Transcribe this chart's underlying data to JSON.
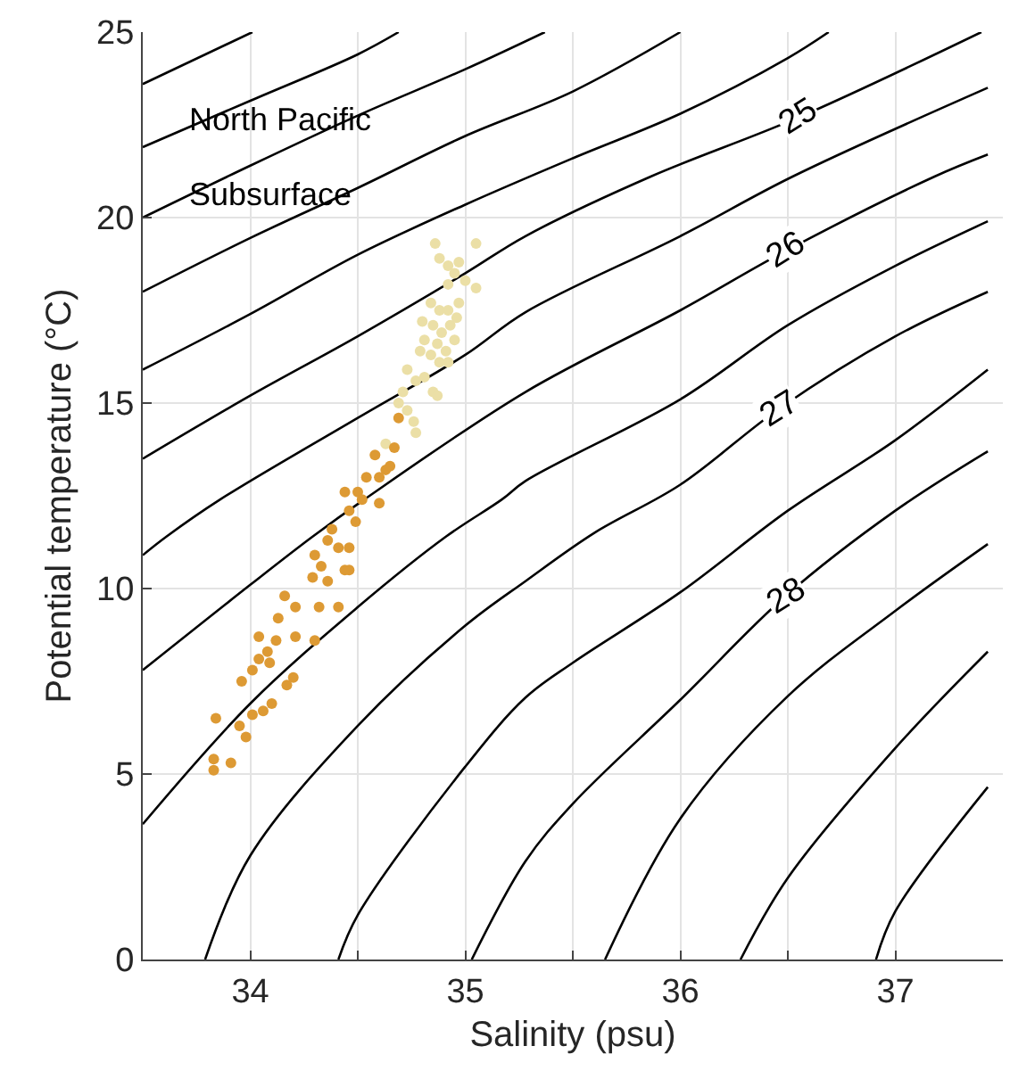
{
  "chart_data": {
    "type": "scatter",
    "xlabel": "Salinity (psu)",
    "ylabel": "Potential temperature (°C)",
    "xlim": [
      33.5,
      37.5
    ],
    "ylim": [
      0,
      25
    ],
    "xticks": [
      34,
      {
        "value": 34.5,
        "label": null
      },
      35,
      {
        "value": 35.5,
        "label": null
      },
      36,
      {
        "value": 36.5,
        "label": null
      },
      37
    ],
    "yticks": [
      0,
      5,
      10,
      15,
      20,
      25
    ],
    "grid": true,
    "marker": "circle",
    "annotations": [
      "North Pacific",
      "Subsurface",
      {
        "text": "25",
        "x": 36.55,
        "y": 22.7
      },
      {
        "text": "26",
        "x": 36.49,
        "y": 19.1
      },
      {
        "text": "27",
        "x": 36.46,
        "y": 14.85
      },
      {
        "text": "28",
        "x": 36.49,
        "y": 9.8
      }
    ],
    "series": [
      {
        "type": "line",
        "marker": "none",
        "color": "#000000",
        "x": [
          33.5,
          34.01
        ],
        "values": [
          23.6,
          25
        ]
      },
      {
        "type": "line",
        "marker": "none",
        "color": "#000000",
        "x": [
          33.5,
          34.0,
          34.5,
          34.69
        ],
        "values": [
          21.9,
          23.15,
          24.4,
          25
        ]
      },
      {
        "type": "line",
        "marker": "none",
        "color": "#000000",
        "x": [
          33.5,
          34.0,
          34.5,
          35.0,
          35.37
        ],
        "values": [
          20.0,
          21.4,
          22.75,
          24.0,
          25
        ]
      },
      {
        "type": "line",
        "marker": "none",
        "color": "#000000",
        "x": [
          33.5,
          34.0,
          34.5,
          35.0,
          35.5,
          36.0
        ],
        "values": [
          18.0,
          19.45,
          20.8,
          22.2,
          23.4,
          25
        ]
      },
      {
        "type": "line",
        "marker": "none",
        "color": "#000000",
        "x": [
          33.5,
          34.0,
          34.5,
          35.0,
          35.5,
          36.0,
          36.5,
          36.69
        ],
        "values": [
          15.9,
          17.4,
          19.0,
          20.35,
          21.6,
          22.8,
          24.3,
          25
        ]
      },
      {
        "type": "line",
        "marker": "none",
        "color": "#000000",
        "x": [
          33.5,
          34.0,
          34.5,
          35.0,
          35.28,
          35.86,
          36.55,
          37.4
        ],
        "values": [
          13.5,
          15.2,
          16.8,
          18.5,
          19.5,
          21.1,
          22.7,
          25
        ]
      },
      {
        "type": "line",
        "marker": "none",
        "color": "#000000",
        "x": [
          33.5,
          33.61,
          33.86,
          34.5,
          35.0,
          35.28,
          36.0,
          36.52,
          37.43
        ],
        "values": [
          10.9,
          11.4,
          12.4,
          14.6,
          16.3,
          17.45,
          19.5,
          21.1,
          23.5
        ]
      },
      {
        "type": "line",
        "marker": "none",
        "color": "#000000",
        "x": [
          33.5,
          34.0,
          34.29,
          34.53,
          35.28,
          36.0,
          36.49,
          37.18,
          37.43
        ],
        "values": [
          7.8,
          10.1,
          11.4,
          12.4,
          15.3,
          17.5,
          19.1,
          21.1,
          21.7
        ]
      },
      {
        "type": "line",
        "marker": "none",
        "color": "#000000",
        "x": [
          33.5,
          34.0,
          34.5,
          34.91,
          35.17,
          35.28,
          36.0,
          36.5,
          37.0,
          37.43
        ],
        "values": [
          3.65,
          6.9,
          9.5,
          11.4,
          12.4,
          12.9,
          15.1,
          17.1,
          18.7,
          19.9
        ]
      },
      {
        "type": "line",
        "marker": "none",
        "color": "#000000",
        "x": [
          33.79,
          34.0,
          34.5,
          35.0,
          35.28,
          35.6,
          36.0,
          36.46,
          37.0,
          37.43
        ],
        "values": [
          0,
          2.8,
          6.3,
          9.0,
          10.2,
          11.5,
          12.8,
          14.85,
          16.8,
          18.0
        ]
      },
      {
        "type": "line",
        "marker": "none",
        "color": "#000000",
        "x": [
          34.41,
          34.5,
          35.0,
          35.28,
          35.5,
          36.0,
          36.5,
          37.0,
          37.43
        ],
        "values": [
          0,
          1.2,
          5.2,
          7.06,
          8.0,
          9.9,
          12.1,
          14.0,
          15.9
        ]
      },
      {
        "type": "line",
        "marker": "none",
        "color": "#000000",
        "x": [
          35.03,
          35.28,
          35.5,
          36.0,
          36.49,
          37.0,
          37.43
        ],
        "values": [
          0,
          2.65,
          4.2,
          7.0,
          9.8,
          12.1,
          13.7
        ]
      },
      {
        "type": "line",
        "marker": "none",
        "color": "#000000",
        "x": [
          35.65,
          36.0,
          36.5,
          37.0,
          37.43
        ],
        "values": [
          0,
          3.8,
          7.1,
          9.4,
          11.2
        ]
      },
      {
        "type": "line",
        "marker": "none",
        "color": "#000000",
        "x": [
          36.28,
          36.5,
          37.0,
          37.43
        ],
        "values": [
          0,
          2.2,
          5.7,
          8.3
        ]
      },
      {
        "type": "line",
        "marker": "none",
        "color": "#000000",
        "x": [
          36.91,
          37.0,
          37.43
        ],
        "values": [
          0,
          1.3,
          4.65
        ]
      },
      {
        "color": "#ebdfa6",
        "x": [
          34.86,
          35.05,
          34.88,
          34.92,
          34.97,
          34.95,
          35.0,
          34.92,
          35.05,
          34.84,
          34.88,
          34.92,
          34.97,
          34.8,
          34.85,
          34.89,
          34.93,
          34.96,
          34.81,
          34.87,
          34.91,
          34.95,
          34.84,
          34.88,
          34.79,
          34.92,
          34.73,
          34.77,
          34.81,
          34.71,
          34.85,
          34.87,
          34.69,
          34.73,
          34.76,
          34.77,
          34.63
        ],
        "values": [
          19.3,
          19.3,
          18.9,
          18.7,
          18.8,
          18.5,
          18.3,
          18.2,
          18.1,
          17.7,
          17.5,
          17.5,
          17.7,
          17.2,
          17.1,
          16.9,
          17.1,
          17.3,
          16.7,
          16.6,
          16.4,
          16.7,
          16.3,
          16.1,
          16.4,
          16.1,
          15.9,
          15.6,
          15.7,
          15.3,
          15.3,
          15.2,
          15.0,
          14.8,
          14.5,
          14.2,
          13.9
        ]
      },
      {
        "color": "#dd9a34",
        "x": [
          34.69,
          34.67,
          34.58,
          34.63,
          34.54,
          34.6,
          34.65,
          34.44,
          34.5,
          34.52,
          34.6,
          34.46,
          34.49,
          34.38,
          34.36,
          34.41,
          34.3,
          34.33,
          34.46,
          34.44,
          34.29,
          34.36,
          34.46,
          34.16,
          34.21,
          34.13,
          34.32,
          34.41,
          34.3,
          34.04,
          34.12,
          34.21,
          34.08,
          34.04,
          34.09,
          34.17,
          34.2,
          34.01,
          33.96,
          34.1,
          34.06,
          34.01,
          33.84,
          33.95,
          33.98,
          33.83,
          33.91,
          33.83
        ],
        "values": [
          14.6,
          13.8,
          13.6,
          13.2,
          13.0,
          13.0,
          13.3,
          12.6,
          12.6,
          12.4,
          12.3,
          12.1,
          11.8,
          11.6,
          11.3,
          11.1,
          10.9,
          10.6,
          11.1,
          10.5,
          10.3,
          10.2,
          10.5,
          9.8,
          9.5,
          9.2,
          9.5,
          9.5,
          8.6,
          8.7,
          8.6,
          8.7,
          8.3,
          8.1,
          8.0,
          7.4,
          7.6,
          7.8,
          7.5,
          6.9,
          6.7,
          6.6,
          6.5,
          6.3,
          6.0,
          5.4,
          5.3,
          5.1
        ]
      }
    ]
  }
}
